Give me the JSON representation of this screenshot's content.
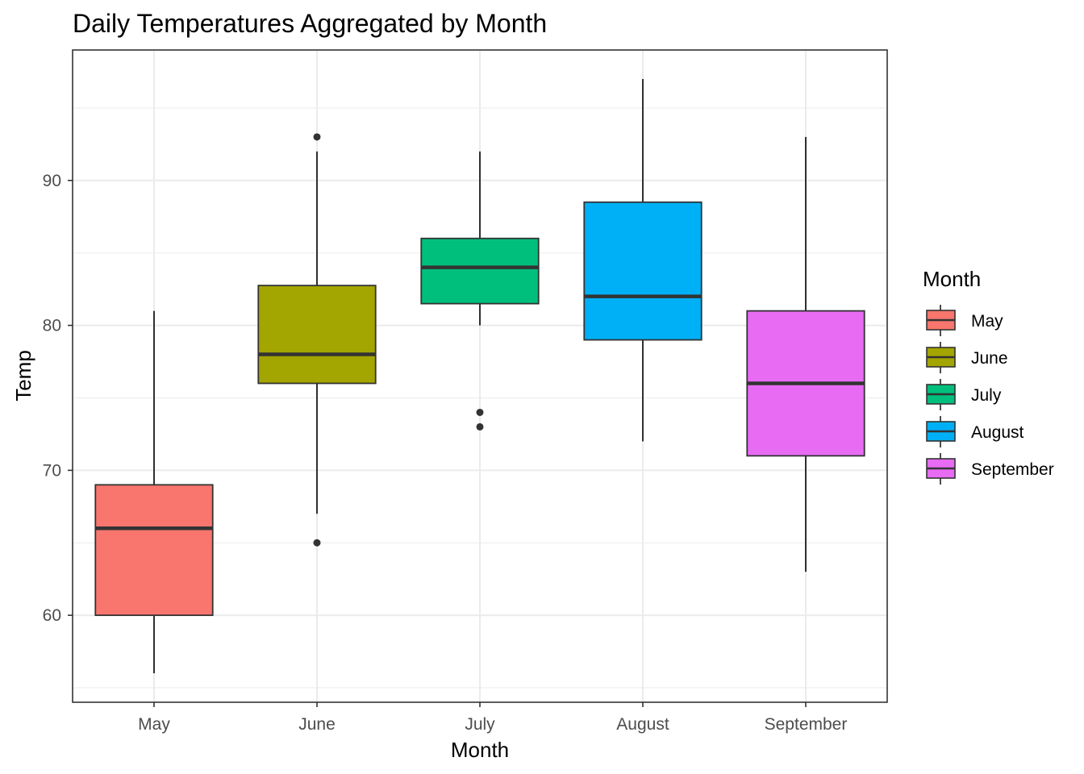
{
  "chart_data": {
    "type": "box",
    "title": "Daily Temperatures Aggregated by Month",
    "xlabel": "Month",
    "ylabel": "Temp",
    "ylim": [
      54,
      99
    ],
    "yticks": [
      60,
      70,
      80,
      90
    ],
    "grid": true,
    "legend": {
      "title": "Month",
      "position": "right"
    },
    "categories": [
      "May",
      "June",
      "July",
      "August",
      "September"
    ],
    "boxes": [
      {
        "name": "May",
        "color": "#F8766D",
        "whisker_low": 56,
        "q1": 60,
        "median": 66,
        "q3": 69,
        "whisker_high": 81,
        "outliers": []
      },
      {
        "name": "June",
        "color": "#A3A500",
        "whisker_low": 67,
        "q1": 76,
        "median": 78,
        "q3": 82.75,
        "whisker_high": 92,
        "outliers": [
          65,
          93
        ]
      },
      {
        "name": "July",
        "color": "#00BF7D",
        "whisker_low": 80,
        "q1": 81.5,
        "median": 84,
        "q3": 86,
        "whisker_high": 92,
        "outliers": [
          73,
          74
        ]
      },
      {
        "name": "August",
        "color": "#00B0F6",
        "whisker_low": 72,
        "q1": 79,
        "median": 82,
        "q3": 88.5,
        "whisker_high": 97,
        "outliers": []
      },
      {
        "name": "September",
        "color": "#E76BF3",
        "whisker_low": 63,
        "q1": 71,
        "median": 76,
        "q3": 81,
        "whisker_high": 93,
        "outliers": []
      }
    ]
  }
}
